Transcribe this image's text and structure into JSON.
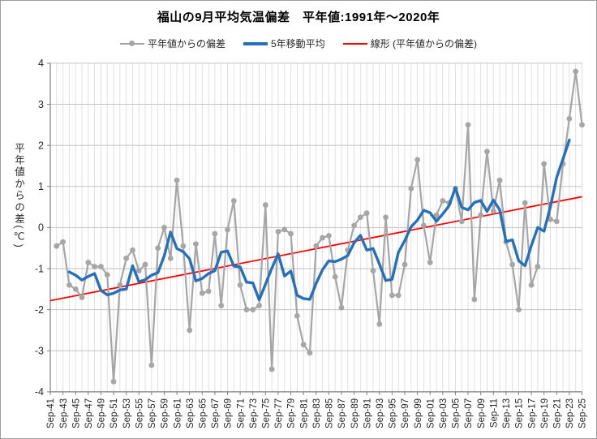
{
  "title": "福山の9月平均気温偏差　平年値:1991年～2020年",
  "legend": [
    {
      "label": "平年値からの偏差",
      "color": "#a6a6a6",
      "type": "line-marker"
    },
    {
      "label": "5年移動平均",
      "color": "#2670b8",
      "type": "thick-line"
    },
    {
      "label": "線形 (平年値からの偏差)",
      "color": "#ff0000",
      "type": "line"
    }
  ],
  "y_axis": {
    "title": "平年値からの差(℃)",
    "ticks": [
      4,
      3,
      2,
      1,
      0,
      -1,
      -2,
      -3,
      -4
    ],
    "min": -4,
    "max": 4
  },
  "x_axis": {
    "first_year": 1941,
    "last_year": 2025,
    "label_every_years": 2,
    "tick_labels": [
      "Sep-41",
      "Sep-43",
      "Sep-45",
      "Sep-47",
      "Sep-49",
      "Sep-51",
      "Sep-53",
      "Sep-55",
      "Sep-57",
      "Sep-59",
      "Sep-61",
      "Sep-63",
      "Sep-65",
      "Sep-67",
      "Sep-69",
      "Sep-71",
      "Sep-73",
      "Sep-75",
      "Sep-77",
      "Sep-79",
      "Sep-81",
      "Sep-83",
      "Sep-85",
      "Sep-87",
      "Sep-89",
      "Sep-91",
      "Sep-93",
      "Sep-95",
      "Sep-97",
      "Sep-99",
      "Sep-01",
      "Sep-03",
      "Sep-05",
      "Sep-07",
      "Sep-09",
      "Sep-11",
      "Sep-13",
      "Sep-15",
      "Sep-17",
      "Sep-19",
      "Sep-21",
      "Sep-23",
      "Sep-25"
    ]
  },
  "chart_data": {
    "type": "line",
    "title": "福山の9月平均気温偏差　平年値:1991年～2020年",
    "xlabel": "",
    "ylabel": "平年値からの差(℃)",
    "ylim": [
      -4,
      4
    ],
    "grid": {
      "vertical_every_year": true,
      "horizontal_every_degree": true
    },
    "legend_position": "top",
    "x_first_year": 1941,
    "series": [
      {
        "name": "平年値からの偏差",
        "color": "#a6a6a6",
        "marker": "circle",
        "start_year": 1941,
        "values": [
          null,
          -0.45,
          -0.35,
          -1.4,
          -1.5,
          -1.7,
          -0.85,
          -0.95,
          -0.95,
          -1.15,
          -3.75,
          -1.4,
          -0.75,
          -0.55,
          -1.05,
          -0.9,
          -3.35,
          -0.5,
          0,
          -0.75,
          1.15,
          -0.45,
          -2.5,
          -0.4,
          -1.6,
          -1.55,
          -0.15,
          -1.9,
          -0.05,
          0.65,
          -1.4,
          -2,
          -2,
          -1.9,
          0.55,
          -3.45,
          -0.1,
          -0.05,
          -0.15,
          -2.15,
          -2.85,
          -3.05,
          -0.45,
          -0.25,
          -0.2,
          -1.2,
          -1.95,
          -0.55,
          0.05,
          0.25,
          0.35,
          -1.05,
          -2.35,
          0.25,
          -1.65,
          -1.65,
          -0.9,
          0.95,
          1.65,
          0.05,
          -0.85,
          0.3,
          0.65,
          0.6,
          0.95,
          0.15,
          2.5,
          -1.75,
          0.3,
          1.85,
          0.4,
          1.15,
          -0.35,
          -0.9,
          -2,
          0.6,
          -1.4,
          -0.95,
          1.55,
          0.2,
          0.15,
          1.55,
          2.65,
          3.8,
          2.5
        ]
      },
      {
        "name": "5年移動平均",
        "color": "#2670b8",
        "marker": "none",
        "start_year": 1944,
        "values": [
          -1.08,
          -1.16,
          -1.28,
          -1.19,
          -1.12,
          -1.53,
          -1.64,
          -1.6,
          -1.52,
          -1.5,
          -0.93,
          -1.32,
          -1.27,
          -1.16,
          -1.1,
          -0.69,
          -0.11,
          -0.51,
          -0.59,
          -0.76,
          -1.3,
          -1.24,
          -1.12,
          -1.05,
          -0.6,
          -0.57,
          -0.94,
          -0.96,
          -1.33,
          -1.35,
          -1.76,
          -1.38,
          -0.99,
          -0.64,
          -1.18,
          -1.06,
          -1.65,
          -1.73,
          -1.75,
          -1.36,
          -1.03,
          -0.81,
          -0.83,
          -0.77,
          -0.68,
          -0.37,
          -0.19,
          -0.55,
          -0.51,
          -0.89,
          -1.29,
          -1.26,
          -0.6,
          -0.32,
          0.02,
          0.18,
          0.42,
          0.36,
          0.15,
          0.33,
          0.53,
          0.97,
          0.49,
          0.43,
          0.61,
          0.66,
          0.39,
          0.67,
          0.43,
          -0.34,
          -0.3,
          -0.81,
          -0.93,
          -0.44,
          0,
          -0.09,
          0.5,
          1.22,
          1.67,
          2.13
        ]
      },
      {
        "name": "線形 (平年値からの偏差)",
        "color": "#ff0000",
        "marker": "none",
        "trend": {
          "start_year": 1941,
          "start_value": -1.78,
          "end_year": 2025,
          "end_value": 0.75
        }
      }
    ]
  }
}
